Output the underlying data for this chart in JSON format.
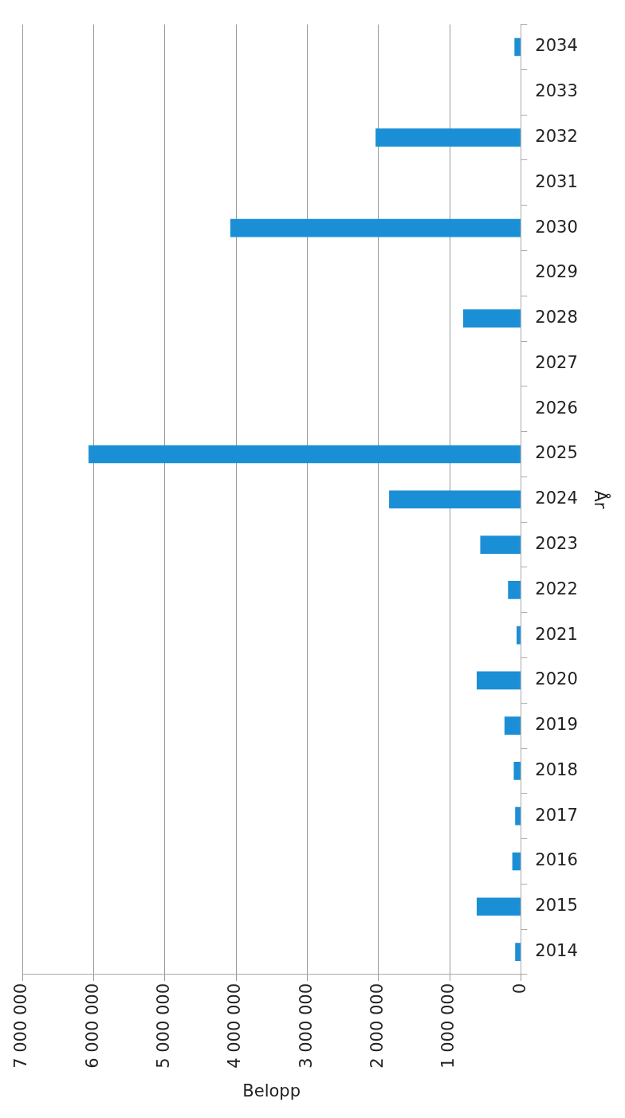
{
  "chart_data": {
    "type": "bar",
    "orientation": "horizontal",
    "xlabel": "Belopp",
    "ylabel": "År",
    "categories": [
      "2034",
      "2033",
      "2032",
      "2031",
      "2030",
      "2029",
      "2028",
      "2027",
      "2026",
      "2025",
      "2024",
      "2023",
      "2022",
      "2021",
      "2020",
      "2019",
      "2018",
      "2017",
      "2016",
      "2015",
      "2014"
    ],
    "values": [
      90000,
      0,
      2040000,
      0,
      4080000,
      0,
      810000,
      0,
      0,
      6070000,
      1850000,
      570000,
      180000,
      60000,
      620000,
      230000,
      100000,
      80000,
      120000,
      620000,
      80000
    ],
    "color": "#1b8fd5",
    "xlim": [
      7000000,
      0
    ],
    "xticks": [
      {
        "value": 7000000,
        "label": "7 000 000"
      },
      {
        "value": 6000000,
        "label": "6 000 000"
      },
      {
        "value": 5000000,
        "label": "5 000 000"
      },
      {
        "value": 4000000,
        "label": "4 000 000"
      },
      {
        "value": 3000000,
        "label": "3 000 000"
      },
      {
        "value": 2000000,
        "label": "2 000 000"
      },
      {
        "value": 1000000,
        "label": "1 000 000"
      },
      0
    ],
    "grid": "x",
    "legend": false
  }
}
